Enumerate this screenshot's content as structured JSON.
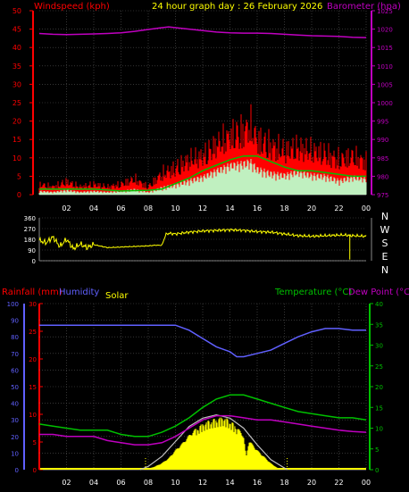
{
  "header": {
    "title": "24 hour graph day : 26 February 2026",
    "windspeed_label": "Windspeed (kph)",
    "barometer_label": "Barometer (hpa)"
  },
  "bottom_header": {
    "rainfall_label": "Rainfall (mm)",
    "humidity_label": "Humidity",
    "solar_label": "Solar",
    "temperature_label": "Temperature (°C)",
    "dewpoint_label": "Dew Point (°C)"
  },
  "colors": {
    "background": "#000000",
    "windspeed": "#ff0000",
    "wind_avg": "#00c000",
    "gust_light": "#c0f0c0",
    "barometer": "#c000c0",
    "title": "#ffff00",
    "direction": "#ffff00",
    "rainfall_axis": "#ff0000",
    "humidity": "#6060ff",
    "solar": "#ffff00",
    "solar_max": "#c0c0c0",
    "temperature": "#00c000",
    "dewpoint": "#c000c0",
    "grid": "#555555",
    "axis_text": "#ffffff"
  },
  "chart_data": [
    {
      "type": "line",
      "id": "wind-baro",
      "x_ticks": [
        "02",
        "04",
        "06",
        "08",
        "10",
        "12",
        "14",
        "16",
        "18",
        "20",
        "22",
        "00"
      ],
      "xlim": [
        0,
        24
      ],
      "y_left": {
        "label": "Windspeed (kph)",
        "ticks": [
          0,
          5,
          10,
          15,
          20,
          25,
          30,
          35,
          40,
          45,
          50
        ],
        "ylim": [
          0,
          50
        ]
      },
      "y_right": {
        "label": "Barometer (hpa)",
        "ticks": [
          975,
          980,
          985,
          990,
          995,
          1000,
          1005,
          1010,
          1015,
          1020,
          1025
        ],
        "ylim": [
          975,
          1025
        ]
      },
      "series": [
        {
          "role": "barometer",
          "axis": "right",
          "x": [
            0,
            1,
            2,
            3,
            4,
            5,
            6,
            7,
            8,
            9,
            9.5,
            10,
            11,
            12,
            13,
            14,
            15,
            16,
            17,
            18,
            19,
            20,
            21,
            22,
            23,
            24
          ],
          "y": [
            1018.8,
            1018.6,
            1018.5,
            1018.6,
            1018.7,
            1018.8,
            1019.0,
            1019.4,
            1019.9,
            1020.4,
            1020.6,
            1020.4,
            1020.0,
            1019.6,
            1019.2,
            1019.0,
            1018.9,
            1018.9,
            1018.8,
            1018.6,
            1018.4,
            1018.2,
            1018.1,
            1018.0,
            1017.8,
            1017.7
          ]
        },
        {
          "role": "wind-average",
          "axis": "left",
          "x": [
            0,
            2,
            4,
            6,
            8,
            9,
            10,
            11,
            12,
            13,
            14,
            15,
            16,
            17,
            18,
            19,
            20,
            21,
            22,
            23,
            24
          ],
          "y": [
            1.5,
            1.5,
            1.5,
            1.0,
            1.2,
            1.5,
            3.0,
            4.5,
            6.5,
            8.0,
            9.5,
            10.5,
            10.5,
            9.0,
            7.5,
            6.5,
            6.5,
            6.0,
            5.5,
            5.0,
            5.0
          ]
        }
      ],
      "wind_envelope": {
        "x": [
          0,
          1,
          2,
          3,
          4,
          5,
          6,
          7,
          8,
          9,
          10,
          11,
          12,
          13,
          14,
          15,
          15.5,
          16,
          17,
          18,
          19,
          20,
          21,
          22,
          23,
          24
        ],
        "gust": [
          4,
          3,
          5,
          3,
          4,
          3,
          4,
          6,
          3,
          8,
          10,
          13,
          14,
          18,
          21,
          23,
          25,
          20,
          18,
          16,
          17,
          16,
          15,
          13,
          14,
          12
        ],
        "low": [
          0,
          0,
          0,
          0,
          0,
          0,
          0,
          0,
          0,
          0,
          0.5,
          1,
          2,
          3,
          4,
          4,
          4,
          3,
          2,
          2,
          3,
          2,
          2,
          1,
          2,
          2
        ]
      }
    },
    {
      "type": "line",
      "id": "wind-direction",
      "x_ticks": [
        "02",
        "04",
        "06",
        "08",
        "10",
        "12",
        "14",
        "16",
        "18",
        "20",
        "22",
        "00"
      ],
      "xlim": [
        0,
        24
      ],
      "y_left": {
        "ticks": [
          0,
          90,
          180,
          270,
          360
        ],
        "ylim": [
          0,
          360
        ]
      },
      "y_right": {
        "labels": [
          "N",
          "W",
          "S",
          "E",
          "N"
        ]
      },
      "series": [
        {
          "role": "wind-direction",
          "axis": "left",
          "x": [
            0,
            0.5,
            1,
            1.5,
            2,
            2.5,
            3,
            3.5,
            4,
            5,
            6,
            7,
            8,
            8.5,
            9,
            9.3,
            9.5,
            10,
            11,
            12,
            13,
            14,
            15,
            16,
            17,
            18,
            19,
            20,
            21,
            22,
            22.5,
            23,
            24
          ],
          "y": [
            170,
            150,
            200,
            120,
            180,
            100,
            140,
            110,
            135,
            110,
            115,
            120,
            125,
            130,
            130,
            220,
            230,
            225,
            240,
            250,
            255,
            260,
            255,
            245,
            240,
            225,
            210,
            205,
            210,
            215,
            215,
            210,
            205
          ]
        }
      ]
    },
    {
      "type": "line",
      "id": "temp-hum-solar",
      "x_ticks": [
        "02",
        "04",
        "06",
        "08",
        "10",
        "12",
        "14",
        "16",
        "18",
        "20",
        "22",
        "00"
      ],
      "xlim": [
        0,
        24
      ],
      "y_left_outer": {
        "label": "Humidity",
        "ticks": [
          0,
          10,
          20,
          30,
          40,
          50,
          60,
          70,
          80,
          90,
          100
        ],
        "ylim": [
          0,
          100
        ]
      },
      "y_left_inner": {
        "label": "Rainfall (mm)",
        "ticks": [
          0,
          5,
          10,
          15,
          20,
          25,
          30
        ],
        "ylim": [
          0,
          30
        ]
      },
      "y_right": {
        "label": "Temperature (°C)",
        "ticks": [
          0,
          5,
          10,
          15,
          20,
          25,
          30,
          35,
          40
        ],
        "ylim": [
          0,
          40
        ]
      },
      "series": [
        {
          "role": "humidity",
          "axis": "left_outer",
          "x": [
            0,
            2,
            4,
            6,
            7,
            8,
            9,
            10,
            11,
            12,
            13,
            14,
            14.5,
            15,
            16,
            17,
            18,
            19,
            20,
            21,
            22,
            23,
            24
          ],
          "y": [
            87,
            87,
            87,
            87,
            87,
            87,
            87,
            87,
            84,
            79,
            74,
            71,
            68,
            68,
            70,
            72,
            76,
            80,
            83,
            85,
            85,
            84,
            84
          ]
        },
        {
          "role": "temperature",
          "axis": "right",
          "x": [
            0,
            1,
            2,
            3,
            4,
            5,
            6,
            7,
            8,
            9,
            10,
            11,
            12,
            13,
            14,
            15,
            16,
            17,
            18,
            19,
            20,
            21,
            22,
            23,
            24
          ],
          "y": [
            11,
            10.5,
            10,
            9.5,
            9.5,
            9.5,
            8.5,
            8,
            8,
            9,
            10.5,
            12.5,
            15,
            17,
            18,
            18,
            17,
            16,
            15,
            14,
            13.5,
            13,
            12.5,
            12.5,
            12
          ]
        },
        {
          "role": "dewpoint",
          "axis": "right",
          "x": [
            0,
            1,
            2,
            3,
            4,
            5,
            6,
            7,
            8,
            9,
            10,
            11,
            12,
            13,
            14,
            15,
            16,
            17,
            18,
            19,
            20,
            21,
            22,
            23,
            24
          ],
          "y": [
            8.5,
            8.5,
            8,
            8,
            8,
            7,
            6.5,
            6,
            6,
            6.5,
            8,
            10,
            12,
            13,
            13,
            12.5,
            12,
            12,
            11.5,
            11,
            10.5,
            10,
            9.5,
            9.2,
            9
          ]
        },
        {
          "role": "solar-max",
          "axis": "left_outer",
          "x": [
            7.4,
            8,
            9,
            10,
            11,
            12,
            13,
            14,
            15,
            16,
            17,
            18.2
          ],
          "y": [
            0,
            2,
            8,
            17,
            26,
            31,
            33,
            31,
            25,
            15,
            6,
            0
          ]
        }
      ],
      "solar_profile": {
        "x": [
          7.8,
          8.5,
          9,
          9.5,
          10,
          10.5,
          11,
          11.5,
          12,
          12.5,
          13,
          13.5,
          14,
          14.5,
          15,
          15.2,
          15.4,
          15.6,
          16,
          16.5,
          17,
          17.5,
          18
        ],
        "y": [
          0,
          2,
          4,
          7,
          12,
          16,
          21,
          25,
          28,
          30,
          31,
          32,
          30,
          26,
          21,
          8,
          18,
          16,
          12,
          8,
          4,
          1,
          0
        ]
      }
    }
  ]
}
